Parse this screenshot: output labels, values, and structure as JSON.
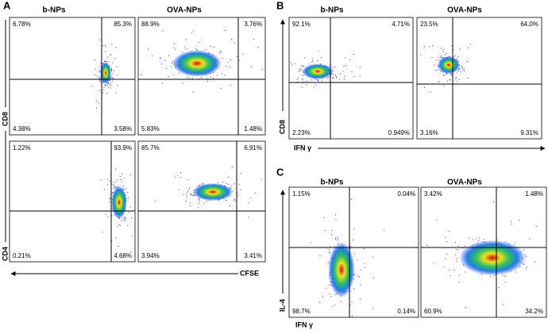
{
  "panels": [
    {
      "label": "A",
      "columns": [
        "b-NPs",
        "OVA-NPs"
      ],
      "row_labels": [
        "CD8",
        "CD4"
      ],
      "x_label": "CFSE",
      "plots": [
        [
          [
            "6.78%",
            "85.3%",
            "4.38%",
            "3.58%"
          ],
          [
            "88.9%",
            "3.76%",
            "5.83%",
            "1.48%"
          ]
        ],
        [
          [
            "1.22%",
            "93.9%",
            "0.21%",
            "4.68%"
          ],
          [
            "85.7%",
            "6.91%",
            "3.94%",
            "3.41%"
          ]
        ]
      ]
    },
    {
      "label": "B",
      "columns": [
        "b-NPs",
        "OVA-NPs"
      ],
      "row_labels": [
        "CD8"
      ],
      "x_label": "IFN γ",
      "plots": [
        [
          [
            "92.1%",
            "4.71%",
            "2.23%",
            "0.949%"
          ],
          [
            "23.5%",
            "64.0%",
            "3.16%",
            "9.31%"
          ]
        ]
      ]
    },
    {
      "label": "C",
      "columns": [
        "b-NPs",
        "OVA-NPs"
      ],
      "row_labels": [
        "IL-4"
      ],
      "x_label": "IFN γ",
      "plots": [
        [
          [
            "1.15%",
            "0.04%",
            "98.7%",
            "0.14%"
          ],
          [
            "3.42%",
            "1.48%",
            "60.9%",
            "34.2%"
          ]
        ]
      ]
    }
  ]
}
